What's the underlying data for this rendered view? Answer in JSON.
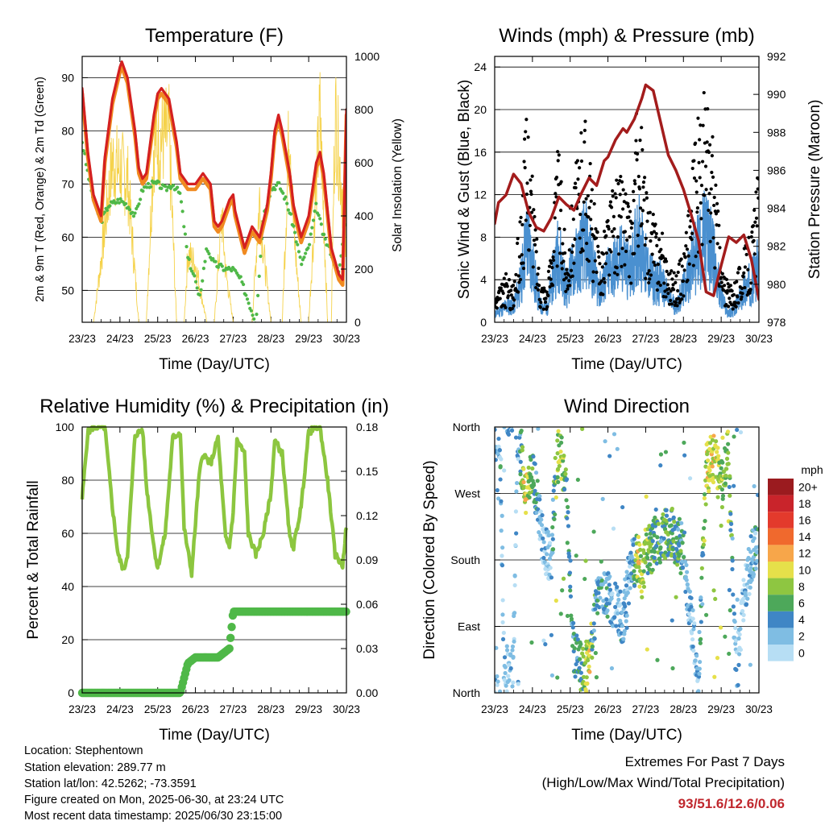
{
  "chart_data": [
    {
      "type": "line",
      "title": "Temperature (F)",
      "xlabel": "Time (Day/UTC)",
      "ylabel": "2m & 9m T (Red, Orange) & 2m Td (Green)",
      "y2label": "Solar Insolation (Yellow)",
      "categories": [
        "23/23",
        "24/23",
        "25/23",
        "26/23",
        "27/23",
        "28/23",
        "29/23",
        "30/23"
      ],
      "ylim": [
        44,
        94
      ],
      "yticks": [
        50,
        60,
        70,
        80,
        90
      ],
      "y2lim": [
        0,
        1000
      ],
      "y2ticks": [
        0,
        200,
        400,
        600,
        800,
        1000
      ],
      "colors": {
        "t2m": "#d42020",
        "t9m": "#f08a20",
        "td": "#4fb848",
        "solar": "#f5d24a"
      },
      "series": [
        {
          "name": "2m T",
          "x": [
            0,
            0.15,
            0.3,
            0.5,
            0.6,
            0.8,
            1,
            1.05,
            1.2,
            1.4,
            1.5,
            1.6,
            1.7,
            1.9,
            2,
            2.1,
            2.3,
            2.5,
            2.6,
            2.8,
            3,
            3.2,
            3.4,
            3.5,
            3.6,
            3.7,
            3.9,
            4,
            4.05,
            4.3,
            4.4,
            4.5,
            4.6,
            4.7,
            4.9,
            5,
            5.1,
            5.2,
            5.3,
            5.5,
            5.6,
            5.8,
            6,
            6.2,
            6.3,
            6.4,
            6.6,
            6.8,
            6.9,
            7
          ],
          "values": [
            88,
            76,
            68,
            64,
            75,
            86,
            92,
            93,
            90,
            80,
            73,
            71,
            72,
            83,
            87,
            88,
            86,
            78,
            72,
            70,
            70,
            72,
            70,
            63,
            62,
            63,
            67,
            68,
            65,
            58,
            60,
            62,
            61,
            60,
            66,
            72,
            80,
            83,
            80,
            72,
            66,
            60,
            64,
            74,
            76,
            72,
            58,
            53,
            52,
            84
          ]
        },
        {
          "name": "9m T",
          "x": [
            0,
            0.15,
            0.3,
            0.5,
            0.6,
            0.8,
            1,
            1.05,
            1.2,
            1.4,
            1.5,
            1.6,
            1.7,
            1.9,
            2,
            2.1,
            2.3,
            2.5,
            2.6,
            2.8,
            3,
            3.2,
            3.4,
            3.5,
            3.6,
            3.7,
            3.9,
            4,
            4.05,
            4.3,
            4.4,
            4.5,
            4.6,
            4.7,
            4.9,
            5,
            5.1,
            5.2,
            5.3,
            5.5,
            5.6,
            5.8,
            6,
            6.2,
            6.3,
            6.4,
            6.6,
            6.8,
            6.9,
            7
          ],
          "values": [
            87,
            75,
            67,
            63,
            74,
            85,
            91,
            92,
            89,
            79,
            72,
            70,
            71,
            82,
            86,
            87,
            85,
            77,
            71,
            69,
            69,
            71,
            69,
            62,
            61,
            62,
            66,
            67,
            64,
            57,
            59,
            61,
            60,
            59,
            65,
            71,
            79,
            82,
            79,
            71,
            65,
            59,
            63,
            73,
            75,
            71,
            57,
            52,
            51,
            83
          ]
        },
        {
          "name": "2m Td",
          "x": [
            0,
            0.15,
            0.3,
            0.5,
            0.7,
            1,
            1.2,
            1.4,
            1.6,
            1.8,
            2,
            2.2,
            2.4,
            2.6,
            2.8,
            3,
            3.1,
            3.3,
            3.5,
            3.8,
            4,
            4.2,
            4.4,
            4.6,
            4.8,
            5,
            5.2,
            5.4,
            5.6,
            5.8,
            6,
            6.2,
            6.4,
            6.6,
            6.8,
            7
          ],
          "values": [
            78,
            72,
            67,
            63,
            66,
            67,
            66,
            64,
            69,
            70,
            70,
            69,
            70,
            68,
            56,
            52,
            48,
            58,
            55,
            54,
            54,
            52,
            48,
            44,
            64,
            69,
            70,
            67,
            62,
            55,
            58,
            66,
            60,
            57,
            53,
            65
          ]
        },
        {
          "name": "Solar Insolation",
          "axis": "y2",
          "x": [
            0,
            0.3,
            0.5,
            0.8,
            1.2,
            1.5,
            1.7,
            1.9,
            2.3,
            2.5,
            2.7,
            2.8,
            3,
            3.3,
            3.5,
            3.7,
            3.8,
            4,
            4.3,
            4.5,
            4.7,
            4.8,
            5,
            5.3,
            5.5,
            5.6,
            5.8,
            6,
            6.3,
            6.5,
            6.6,
            6.7,
            7
          ],
          "values": [
            0,
            0,
            300,
            780,
            700,
            0,
            0,
            880,
            900,
            0,
            0,
            330,
            280,
            0,
            0,
            520,
            250,
            0,
            0,
            0,
            600,
            350,
            0,
            0,
            1020,
            450,
            0,
            0,
            1000,
            0,
            0,
            1020,
            400
          ]
        }
      ]
    },
    {
      "type": "scatter",
      "title": "Winds (mph) & Pressure (mb)",
      "xlabel": "Time (Day/UTC)",
      "ylabel": "Sonic Wind & Gust (Blue, Black)",
      "y2label": "Station Pressure (Maroon)",
      "categories": [
        "23/23",
        "24/23",
        "25/23",
        "26/23",
        "27/23",
        "28/23",
        "29/23",
        "30/23"
      ],
      "ylim": [
        0,
        25
      ],
      "yticks": [
        0,
        4,
        8,
        12,
        16,
        20,
        24
      ],
      "y2lim": [
        978,
        992
      ],
      "y2ticks": [
        978,
        980,
        982,
        984,
        986,
        988,
        990,
        992
      ],
      "colors": {
        "wind": "#4a90d0",
        "gust": "#000000",
        "pressure": "#a31c1c"
      },
      "series": [
        {
          "name": "Gust",
          "x": [
            0,
            0.3,
            0.5,
            0.7,
            0.8,
            0.9,
            1,
            1.2,
            1.4,
            1.6,
            1.7,
            1.8,
            1.9,
            2,
            2.2,
            2.4,
            2.6,
            2.7,
            2.8,
            3,
            3.2,
            3.4,
            3.6,
            3.8,
            3.9,
            4,
            4.2,
            4.4,
            4.6,
            4.8,
            5,
            5.2,
            5.4,
            5.6,
            5.8,
            6,
            6.2,
            6.4,
            6.6,
            6.8,
            7
          ],
          "values": [
            2,
            4,
            3,
            10,
            16,
            18,
            12,
            4,
            3,
            12,
            15,
            10,
            6,
            10,
            14,
            18,
            11,
            8,
            6,
            10,
            12,
            13,
            9,
            20,
            16,
            11,
            9,
            8,
            5,
            4,
            6,
            12,
            17,
            20,
            15,
            5,
            3,
            4,
            6,
            8,
            13
          ]
        },
        {
          "name": "Wind",
          "x": [
            0,
            0.3,
            0.5,
            0.7,
            0.8,
            0.9,
            1,
            1.2,
            1.4,
            1.6,
            1.7,
            1.8,
            1.9,
            2,
            2.2,
            2.4,
            2.6,
            2.7,
            2.8,
            3,
            3.2,
            3.4,
            3.6,
            3.8,
            3.9,
            4,
            4.2,
            4.4,
            4.6,
            4.8,
            5,
            5.2,
            5.4,
            5.6,
            5.8,
            6,
            6.2,
            6.4,
            6.6,
            6.8,
            7
          ],
          "values": [
            1,
            2,
            2,
            5,
            9,
            10,
            7,
            2,
            2,
            7,
            9,
            6,
            4,
            6,
            8,
            10,
            7,
            5,
            4,
            6,
            7,
            8,
            6,
            11,
            9,
            7,
            5,
            5,
            3,
            2,
            4,
            7,
            9,
            11,
            8,
            3,
            1,
            2,
            4,
            5,
            7
          ]
        },
        {
          "name": "Station Pressure",
          "axis": "y2",
          "x": [
            0,
            0.1,
            0.3,
            0.5,
            0.7,
            0.9,
            1.1,
            1.3,
            1.5,
            1.7,
            1.9,
            2.1,
            2.3,
            2.5,
            2.7,
            2.9,
            3,
            3.2,
            3.4,
            3.5,
            3.7,
            3.9,
            4,
            4.2,
            4.4,
            4.6,
            4.8,
            5,
            5.2,
            5.4,
            5.6,
            5.8,
            6,
            6.2,
            6.4,
            6.6,
            6.8,
            7
          ],
          "values": [
            983.2,
            984.3,
            984.7,
            985.8,
            985.3,
            983.8,
            983,
            982.8,
            983.5,
            984.6,
            984.2,
            983.9,
            984.8,
            985.6,
            985.2,
            986.5,
            986.7,
            987.6,
            988.2,
            988,
            988.7,
            989.8,
            990.5,
            990.2,
            988.5,
            986.8,
            986,
            985,
            983.7,
            982.3,
            979.6,
            979.4,
            981,
            982.5,
            982.2,
            982.6,
            981.3,
            979.2
          ]
        }
      ]
    },
    {
      "type": "line",
      "title": "Relative Humidity (%) & Precipitation (in)",
      "xlabel": "Time (Day/UTC)",
      "ylabel": "Percent & Total Rainfall",
      "categories": [
        "23/23",
        "24/23",
        "25/23",
        "26/23",
        "27/23",
        "28/23",
        "29/23",
        "30/23"
      ],
      "ylim": [
        0,
        100
      ],
      "yticks": [
        0,
        20,
        40,
        60,
        80,
        100
      ],
      "y2lim": [
        0,
        0.18
      ],
      "y2ticks": [
        "0.00",
        "0.03",
        "0.06",
        "0.09",
        "0.12",
        "0.15",
        "0.18"
      ],
      "colors": {
        "rh": "#8cc63f",
        "precip": "#4fb848"
      },
      "series": [
        {
          "name": "Relative Humidity",
          "x": [
            0,
            0.15,
            0.3,
            0.6,
            0.8,
            0.95,
            1.1,
            1.2,
            1.4,
            1.6,
            1.7,
            1.9,
            2,
            2.2,
            2.4,
            2.6,
            2.7,
            2.9,
            3.1,
            3.2,
            3.4,
            3.6,
            3.8,
            3.9,
            4,
            4.1,
            4.3,
            4.4,
            4.6,
            4.8,
            5,
            5.1,
            5.3,
            5.5,
            5.6,
            5.8,
            6,
            6.2,
            6.3,
            6.5,
            6.7,
            6.9,
            7
          ],
          "values": [
            73,
            98,
            100,
            100,
            70,
            52,
            46,
            52,
            97,
            99,
            78,
            55,
            47,
            60,
            96,
            98,
            62,
            45,
            82,
            90,
            86,
            96,
            58,
            55,
            68,
            95,
            90,
            60,
            52,
            60,
            75,
            95,
            90,
            58,
            55,
            70,
            98,
            100,
            100,
            80,
            52,
            48,
            63
          ]
        },
        {
          "name": "Total Precipitation",
          "axis": "y2",
          "x": [
            0,
            0.5,
            1,
            1.5,
            2,
            2.6,
            2.8,
            3,
            3.3,
            3.6,
            3.9,
            3.95,
            4,
            4.5,
            5,
            5.5,
            6,
            6.5,
            7
          ],
          "values": [
            0,
            0,
            0,
            0,
            0,
            0,
            0.02,
            0.024,
            0.024,
            0.024,
            0.03,
            0.042,
            0.055,
            0.055,
            0.055,
            0.055,
            0.055,
            0.055,
            0.055
          ]
        }
      ]
    },
    {
      "type": "scatter",
      "title": "Wind Direction",
      "xlabel": "Time (Day/UTC)",
      "ylabel": "Direction (Colored By Speed)",
      "categories": [
        "23/23",
        "24/23",
        "25/23",
        "26/23",
        "27/23",
        "28/23",
        "29/23",
        "30/23"
      ],
      "ylim": [
        0,
        360
      ],
      "yticks": [
        "North",
        "East",
        "South",
        "West",
        "North"
      ],
      "legend": {
        "title": "mph",
        "labels": [
          "20+",
          "18",
          "16",
          "14",
          "12",
          "10",
          "8",
          "6",
          "4",
          "2",
          "0"
        ],
        "colors": [
          "#9b1b1f",
          "#c9242b",
          "#e33a2c",
          "#f0692d",
          "#f7a64a",
          "#e6e04a",
          "#8ec641",
          "#4da85a",
          "#3f86c5",
          "#7fbde3",
          "#b7def4"
        ]
      },
      "series": [
        {
          "name": "Direction",
          "x": [
            0.05,
            0.15,
            0.25,
            0.5,
            0.6,
            0.75,
            0.8,
            0.9,
            1,
            1.3,
            1.5,
            1.6,
            1.7,
            1.8,
            1.9,
            2.1,
            2.3,
            2.5,
            2.6,
            2.8,
            3,
            3.2,
            3.4,
            3.6,
            3.8,
            3.9,
            4,
            4.2,
            4.4,
            4.6,
            4.8,
            5,
            5.2,
            5.4,
            5.6,
            5.8,
            6,
            6.2,
            6.4,
            6.6,
            6.8,
            6.9
          ],
          "values": [
            350,
            340,
            20,
            30,
            350,
            300,
            270,
            290,
            300,
            200,
            180,
            280,
            330,
            310,
            270,
            60,
            30,
            40,
            90,
            150,
            130,
            120,
            100,
            170,
            180,
            160,
            190,
            200,
            210,
            220,
            210,
            190,
            100,
            20,
            300,
            320,
            280,
            330,
            20,
            130,
            180,
            200
          ],
          "speeds": [
            2,
            3,
            1,
            2,
            1,
            8,
            10,
            9,
            6,
            1,
            2,
            7,
            9,
            8,
            5,
            4,
            6,
            10,
            5,
            4,
            3,
            2,
            3,
            2,
            9,
            8,
            7,
            6,
            5,
            6,
            6,
            4,
            1,
            2,
            9,
            10,
            8,
            7,
            2,
            1,
            4,
            3
          ]
        }
      ]
    }
  ],
  "info": {
    "location": "Location: Stephentown",
    "elevation": "Station elevation: 289.77 m",
    "latlon": "Station lat/lon: 42.5262; -73.3591",
    "created": "Figure created on Mon, 2025-06-30, at 23:24 UTC",
    "recent": "Most recent data timestamp: 2025/06/30 23:15:00"
  },
  "extremes": {
    "title": "Extremes For Past 7 Days",
    "subtitle": "(High/Low/Max Wind/Total Precipitation)",
    "values": "93/51.6/12.6/0.06"
  }
}
